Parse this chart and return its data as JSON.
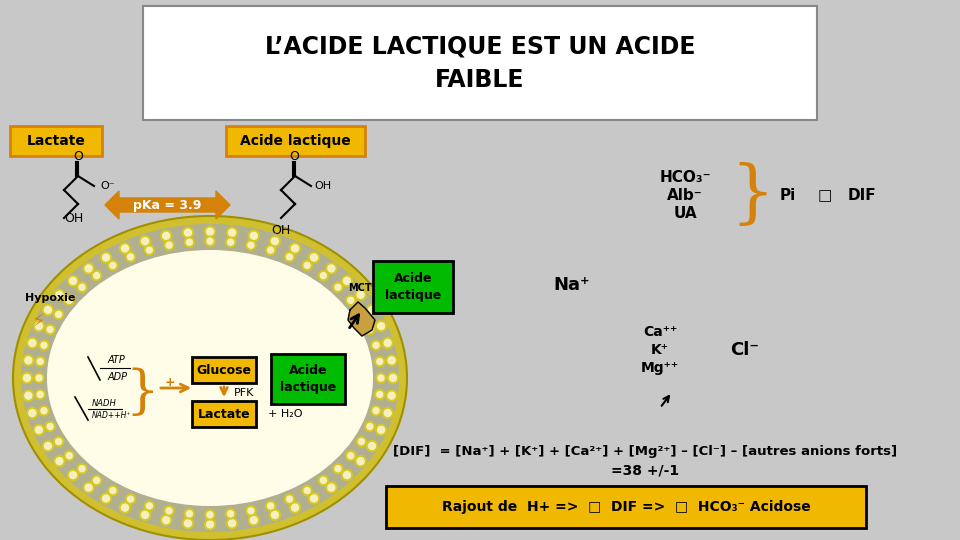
{
  "title": "L’ACIDE LACTIQUE EST UN ACIDE\nFAIBLE",
  "bg_color": "#c8c8c8",
  "title_box_color": "#ffffff",
  "orange_color": "#d4820a",
  "green_color": "#00bb00",
  "yellow_label_bg": "#f0b800",
  "label_lactate": "Lactate",
  "label_acide_lactique": "Acide lactique",
  "label_pka": "pKa = 3.9",
  "label_hco3": "HCO₃⁻",
  "label_alb": "Alb⁻",
  "label_ua": "UA",
  "label_pi": "Pi",
  "label_dif": "□  DIF",
  "label_na": "Na⁺",
  "label_ca": "Ca⁺⁺",
  "label_k": "K⁺",
  "label_mg": "Mg⁺⁺",
  "label_cl": "Cl⁻",
  "label_hypoxie": "Hypoxie",
  "label_mct": "MCT",
  "label_atp": "ATP",
  "label_adp": "ADP",
  "label_nadh": "NADH",
  "label_nad": "NAD++H⁺",
  "label_glucose": "Glucose",
  "label_pfk": "PFK",
  "label_lactate_inner": "Lactate",
  "label_acide_inner": "Acide\nlactique",
  "label_acide_outer": "Acide\nlactique",
  "label_h2o": "+ H₂O",
  "formula": "[DIF]  = [Na⁺] + [K⁺] + [Ca²⁺] + [Mg²⁺] – [Cl⁻] – [autres anions forts]",
  "formula2": "=38 +/-1",
  "bottom_text": "Rajout de  H+ =>  □  DIF =>  □  HCO₃⁻ Acidose"
}
